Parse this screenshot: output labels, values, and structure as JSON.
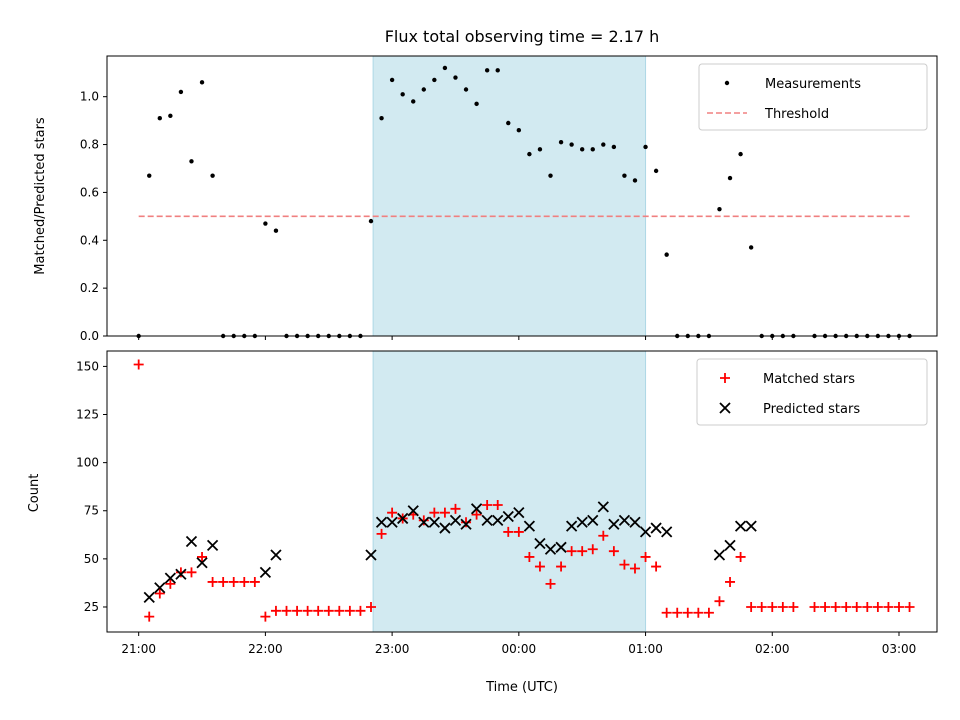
{
  "chart_data": [
    {
      "type": "scatter",
      "title": "Flux total observing time = 2.17 h",
      "xlabel": "",
      "ylabel": "Matched/Predicted stars",
      "ylim": [
        0,
        1.17
      ],
      "yticks": [
        0.0,
        0.2,
        0.4,
        0.6,
        0.8,
        1.0
      ],
      "xlim": [
        "20:45",
        "03:18"
      ],
      "xticks": [
        "21:00",
        "22:00",
        "23:00",
        "00:00",
        "01:00",
        "02:00",
        "03:00"
      ],
      "highlight_interval": [
        "22:51",
        "01:00"
      ],
      "highlight_color": "#add8e6",
      "legend": "top-right",
      "series": [
        {
          "name": "Measurements",
          "marker": "dot",
          "color": "#000000",
          "points": [
            [
              "21:00",
              0.0
            ],
            [
              "21:05",
              0.67
            ],
            [
              "21:10",
              0.91
            ],
            [
              "21:15",
              0.92
            ],
            [
              "21:20",
              1.02
            ],
            [
              "21:25",
              0.73
            ],
            [
              "21:30",
              1.06
            ],
            [
              "21:35",
              0.67
            ],
            [
              "21:40",
              0.0
            ],
            [
              "21:45",
              0.0
            ],
            [
              "21:50",
              0.0
            ],
            [
              "21:55",
              0.0
            ],
            [
              "22:00",
              0.47
            ],
            [
              "22:05",
              0.44
            ],
            [
              "22:10",
              0.0
            ],
            [
              "22:15",
              0.0
            ],
            [
              "22:20",
              0.0
            ],
            [
              "22:25",
              0.0
            ],
            [
              "22:30",
              0.0
            ],
            [
              "22:35",
              0.0
            ],
            [
              "22:40",
              0.0
            ],
            [
              "22:45",
              0.0
            ],
            [
              "22:50",
              0.48
            ],
            [
              "22:55",
              0.91
            ],
            [
              "23:00",
              1.07
            ],
            [
              "23:05",
              1.01
            ],
            [
              "23:10",
              0.98
            ],
            [
              "23:15",
              1.03
            ],
            [
              "23:20",
              1.07
            ],
            [
              "23:25",
              1.12
            ],
            [
              "23:30",
              1.08
            ],
            [
              "23:35",
              1.03
            ],
            [
              "23:40",
              0.97
            ],
            [
              "23:45",
              1.11
            ],
            [
              "23:50",
              1.11
            ],
            [
              "23:55",
              0.89
            ],
            [
              "00:00",
              0.86
            ],
            [
              "00:05",
              0.76
            ],
            [
              "00:10",
              0.78
            ],
            [
              "00:15",
              0.67
            ],
            [
              "00:20",
              0.81
            ],
            [
              "00:25",
              0.8
            ],
            [
              "00:30",
              0.78
            ],
            [
              "00:35",
              0.78
            ],
            [
              "00:40",
              0.8
            ],
            [
              "00:45",
              0.79
            ],
            [
              "00:50",
              0.67
            ],
            [
              "00:55",
              0.65
            ],
            [
              "01:00",
              0.79
            ],
            [
              "01:05",
              0.69
            ],
            [
              "01:10",
              0.34
            ],
            [
              "01:15",
              0.0
            ],
            [
              "01:20",
              0.0
            ],
            [
              "01:25",
              0.0
            ],
            [
              "01:30",
              0.0
            ],
            [
              "01:35",
              0.53
            ],
            [
              "01:40",
              0.66
            ],
            [
              "01:45",
              0.76
            ],
            [
              "01:50",
              0.37
            ],
            [
              "01:55",
              0.0
            ],
            [
              "02:00",
              0.0
            ],
            [
              "02:05",
              0.0
            ],
            [
              "02:10",
              0.0
            ],
            [
              "02:20",
              0.0
            ],
            [
              "02:25",
              0.0
            ],
            [
              "02:30",
              0.0
            ],
            [
              "02:35",
              0.0
            ],
            [
              "02:40",
              0.0
            ],
            [
              "02:45",
              0.0
            ],
            [
              "02:50",
              0.0
            ],
            [
              "02:55",
              0.0
            ],
            [
              "03:00",
              0.0
            ],
            [
              "03:05",
              0.0
            ]
          ]
        },
        {
          "name": "Threshold",
          "line": "dashed",
          "color": "#f08080",
          "points": [
            [
              "21:00",
              0.5
            ],
            [
              "03:05",
              0.5
            ]
          ]
        }
      ]
    },
    {
      "type": "scatter",
      "title": "",
      "xlabel": "Time (UTC)",
      "ylabel": "Count",
      "ylim": [
        12,
        158
      ],
      "yticks": [
        25,
        50,
        75,
        100,
        125,
        150
      ],
      "xlim": [
        "20:45",
        "03:18"
      ],
      "xticks": [
        "21:00",
        "22:00",
        "23:00",
        "00:00",
        "01:00",
        "02:00",
        "03:00"
      ],
      "highlight_interval": [
        "22:51",
        "01:00"
      ],
      "highlight_color": "#add8e6",
      "legend": "top-right",
      "series": [
        {
          "name": "Matched stars",
          "marker": "plus",
          "color": "#ff0000",
          "points": [
            [
              "21:00",
              151
            ],
            [
              "21:05",
              20
            ],
            [
              "21:10",
              32
            ],
            [
              "21:15",
              37
            ],
            [
              "21:20",
              43
            ],
            [
              "21:25",
              43
            ],
            [
              "21:30",
              51
            ],
            [
              "21:35",
              38
            ],
            [
              "21:40",
              38
            ],
            [
              "21:45",
              38
            ],
            [
              "21:50",
              38
            ],
            [
              "21:55",
              38
            ],
            [
              "22:00",
              20
            ],
            [
              "22:05",
              23
            ],
            [
              "22:10",
              23
            ],
            [
              "22:15",
              23
            ],
            [
              "22:20",
              23
            ],
            [
              "22:25",
              23
            ],
            [
              "22:30",
              23
            ],
            [
              "22:35",
              23
            ],
            [
              "22:40",
              23
            ],
            [
              "22:45",
              23
            ],
            [
              "22:50",
              25
            ],
            [
              "22:55",
              63
            ],
            [
              "23:00",
              74
            ],
            [
              "23:05",
              71
            ],
            [
              "23:10",
              73
            ],
            [
              "23:15",
              70
            ],
            [
              "23:20",
              74
            ],
            [
              "23:25",
              74
            ],
            [
              "23:30",
              76
            ],
            [
              "23:35",
              69
            ],
            [
              "23:40",
              73
            ],
            [
              "23:45",
              78
            ],
            [
              "23:50",
              78
            ],
            [
              "23:55",
              64
            ],
            [
              "00:00",
              64
            ],
            [
              "00:05",
              51
            ],
            [
              "00:10",
              46
            ],
            [
              "00:15",
              37
            ],
            [
              "00:20",
              46
            ],
            [
              "00:25",
              54
            ],
            [
              "00:30",
              54
            ],
            [
              "00:35",
              55
            ],
            [
              "00:40",
              62
            ],
            [
              "00:45",
              54
            ],
            [
              "00:50",
              47
            ],
            [
              "00:55",
              45
            ],
            [
              "01:00",
              51
            ],
            [
              "01:05",
              46
            ],
            [
              "01:10",
              22
            ],
            [
              "01:15",
              22
            ],
            [
              "01:20",
              22
            ],
            [
              "01:25",
              22
            ],
            [
              "01:30",
              22
            ],
            [
              "01:35",
              28
            ],
            [
              "01:40",
              38
            ],
            [
              "01:45",
              51
            ],
            [
              "01:50",
              25
            ],
            [
              "01:55",
              25
            ],
            [
              "02:00",
              25
            ],
            [
              "02:05",
              25
            ],
            [
              "02:10",
              25
            ],
            [
              "02:20",
              25
            ],
            [
              "02:25",
              25
            ],
            [
              "02:30",
              25
            ],
            [
              "02:35",
              25
            ],
            [
              "02:40",
              25
            ],
            [
              "02:45",
              25
            ],
            [
              "02:50",
              25
            ],
            [
              "02:55",
              25
            ],
            [
              "03:00",
              25
            ],
            [
              "03:05",
              25
            ]
          ]
        },
        {
          "name": "Predicted stars",
          "marker": "cross",
          "color": "#000000",
          "points": [
            [
              "21:05",
              30
            ],
            [
              "21:10",
              35
            ],
            [
              "21:15",
              40
            ],
            [
              "21:20",
              42
            ],
            [
              "21:25",
              59
            ],
            [
              "21:30",
              48
            ],
            [
              "21:35",
              57
            ],
            [
              "22:00",
              43
            ],
            [
              "22:05",
              52
            ],
            [
              "22:50",
              52
            ],
            [
              "22:55",
              69
            ],
            [
              "23:00",
              69
            ],
            [
              "23:05",
              71
            ],
            [
              "23:10",
              75
            ],
            [
              "23:15",
              69
            ],
            [
              "23:20",
              69
            ],
            [
              "23:25",
              66
            ],
            [
              "23:30",
              70
            ],
            [
              "23:35",
              68
            ],
            [
              "23:40",
              76
            ],
            [
              "23:45",
              70
            ],
            [
              "23:50",
              70
            ],
            [
              "23:55",
              72
            ],
            [
              "00:00",
              74
            ],
            [
              "00:05",
              67
            ],
            [
              "00:10",
              58
            ],
            [
              "00:15",
              55
            ],
            [
              "00:20",
              56
            ],
            [
              "00:25",
              67
            ],
            [
              "00:30",
              69
            ],
            [
              "00:35",
              70
            ],
            [
              "00:40",
              77
            ],
            [
              "00:45",
              68
            ],
            [
              "00:50",
              70
            ],
            [
              "00:55",
              69
            ],
            [
              "01:00",
              64
            ],
            [
              "01:05",
              66
            ],
            [
              "01:10",
              64
            ],
            [
              "01:35",
              52
            ],
            [
              "01:40",
              57
            ],
            [
              "01:45",
              67
            ],
            [
              "01:50",
              67
            ]
          ]
        }
      ]
    }
  ]
}
